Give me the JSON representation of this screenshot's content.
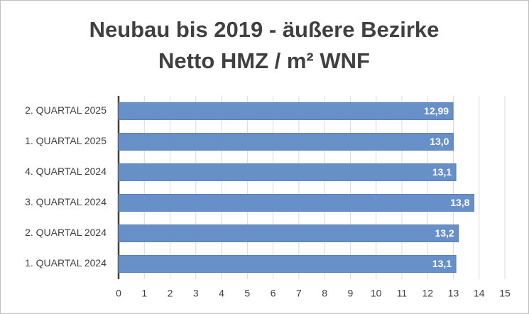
{
  "chart_data": {
    "type": "bar",
    "orientation": "horizontal",
    "title": "Neubau bis 2019 - äußere Bezirke",
    "subtitle": "Netto HMZ / m² WNF",
    "categories": [
      "2. QUARTAL 2025",
      "1. QUARTAL 2025",
      "4. QUARTAL 2024",
      "3. QUARTAL 2024",
      "2. QUARTAL 2024",
      "1. QUARTAL 2024"
    ],
    "values": [
      12.99,
      13.0,
      13.1,
      13.8,
      13.2,
      13.1
    ],
    "value_labels": [
      "12,99",
      "13,0",
      "13,1",
      "13,8",
      "13,2",
      "13,1"
    ],
    "color": "#6890c8",
    "xlim": [
      0,
      15
    ],
    "xticks": [
      0,
      1,
      2,
      3,
      4,
      5,
      6,
      7,
      8,
      9,
      10,
      11,
      12,
      13,
      14,
      15
    ],
    "grid": true
  }
}
